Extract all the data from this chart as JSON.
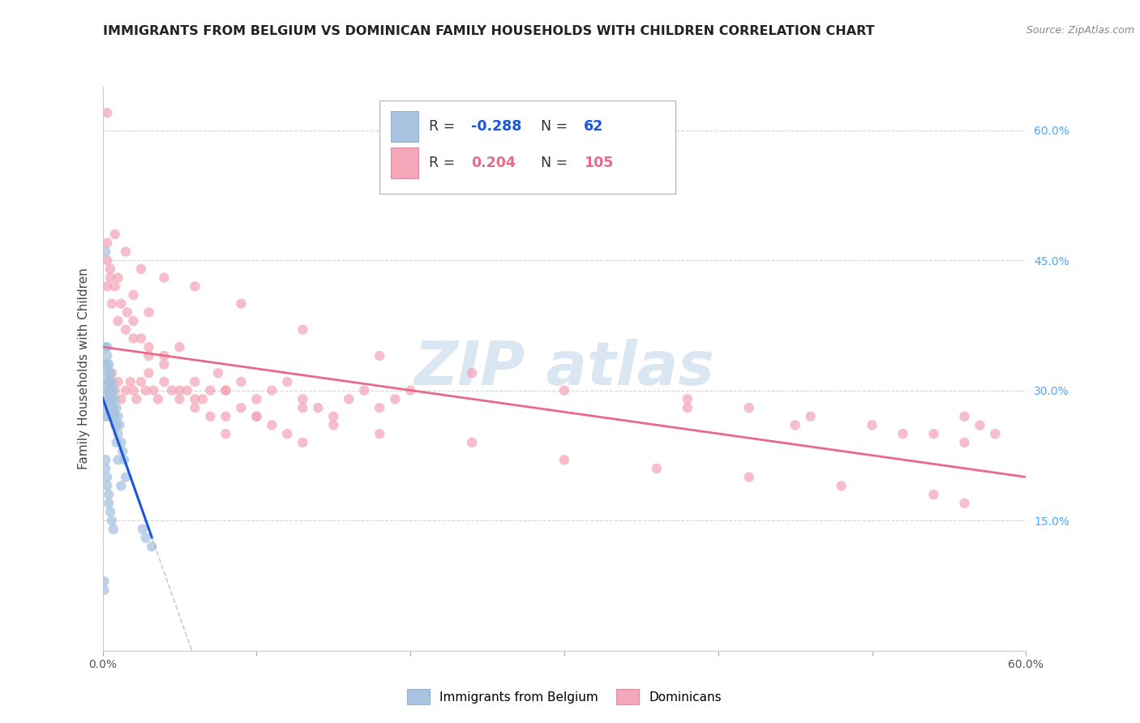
{
  "title": "IMMIGRANTS FROM BELGIUM VS DOMINICAN FAMILY HOUSEHOLDS WITH CHILDREN CORRELATION CHART",
  "source": "Source: ZipAtlas.com",
  "ylabel": "Family Households with Children",
  "xlim": [
    0.0,
    0.6
  ],
  "ylim": [
    0.0,
    0.65
  ],
  "yticks": [
    0.0,
    0.15,
    0.3,
    0.45,
    0.6
  ],
  "ytick_labels": [
    "",
    "15.0%",
    "30.0%",
    "45.0%",
    "60.0%"
  ],
  "xticks": [
    0.0,
    0.1,
    0.2,
    0.3,
    0.4,
    0.5,
    0.6
  ],
  "xtick_labels": [
    "0.0%",
    "",
    "",
    "",
    "",
    "",
    "60.0%"
  ],
  "watermark": "ZIP atlas",
  "legend_R1": "-0.288",
  "legend_N1": "62",
  "legend_R2": "0.204",
  "legend_N2": "105",
  "blue_scatter_color": "#a8c4e0",
  "pink_scatter_color": "#f4a7b9",
  "blue_line_color": "#1a56db",
  "pink_line_color": "#e8698a",
  "scatter_size": 80,
  "background_color": "#ffffff",
  "grid_color": "#cccccc",
  "title_color": "#222222",
  "axis_label_color": "#444444",
  "right_yaxis_color": "#4da6ff",
  "blue_x": [
    0.001,
    0.002,
    0.002,
    0.003,
    0.003,
    0.003,
    0.003,
    0.004,
    0.004,
    0.004,
    0.004,
    0.005,
    0.005,
    0.005,
    0.005,
    0.006,
    0.006,
    0.006,
    0.007,
    0.007,
    0.007,
    0.008,
    0.008,
    0.009,
    0.009,
    0.01,
    0.01,
    0.011,
    0.012,
    0.013,
    0.014,
    0.015,
    0.002,
    0.002,
    0.003,
    0.003,
    0.003,
    0.004,
    0.004,
    0.005,
    0.005,
    0.006,
    0.007,
    0.008,
    0.009,
    0.01,
    0.012,
    0.002,
    0.002,
    0.003,
    0.003,
    0.004,
    0.004,
    0.005,
    0.006,
    0.007,
    0.026,
    0.028,
    0.032,
    0.001,
    0.001,
    0.002
  ],
  "blue_y": [
    0.27,
    0.28,
    0.3,
    0.29,
    0.31,
    0.32,
    0.27,
    0.28,
    0.3,
    0.31,
    0.29,
    0.27,
    0.29,
    0.3,
    0.32,
    0.28,
    0.29,
    0.31,
    0.27,
    0.3,
    0.28,
    0.27,
    0.29,
    0.26,
    0.28,
    0.25,
    0.27,
    0.26,
    0.24,
    0.23,
    0.22,
    0.2,
    0.33,
    0.35,
    0.34,
    0.33,
    0.35,
    0.33,
    0.32,
    0.31,
    0.3,
    0.29,
    0.28,
    0.26,
    0.24,
    0.22,
    0.19,
    0.22,
    0.21,
    0.2,
    0.19,
    0.18,
    0.17,
    0.16,
    0.15,
    0.14,
    0.14,
    0.13,
    0.12,
    0.08,
    0.07,
    0.46
  ],
  "pink_x": [
    0.003,
    0.004,
    0.005,
    0.006,
    0.008,
    0.01,
    0.012,
    0.015,
    0.018,
    0.02,
    0.022,
    0.025,
    0.028,
    0.03,
    0.033,
    0.036,
    0.04,
    0.045,
    0.05,
    0.055,
    0.06,
    0.065,
    0.07,
    0.075,
    0.08,
    0.09,
    0.1,
    0.11,
    0.12,
    0.13,
    0.14,
    0.15,
    0.16,
    0.17,
    0.18,
    0.19,
    0.2,
    0.003,
    0.005,
    0.008,
    0.012,
    0.016,
    0.02,
    0.025,
    0.03,
    0.04,
    0.05,
    0.06,
    0.07,
    0.08,
    0.09,
    0.1,
    0.11,
    0.12,
    0.13,
    0.15,
    0.003,
    0.006,
    0.01,
    0.015,
    0.02,
    0.03,
    0.04,
    0.06,
    0.08,
    0.1,
    0.003,
    0.005,
    0.01,
    0.02,
    0.03,
    0.05,
    0.08,
    0.13,
    0.18,
    0.24,
    0.3,
    0.36,
    0.42,
    0.48,
    0.54,
    0.56,
    0.003,
    0.008,
    0.015,
    0.025,
    0.04,
    0.06,
    0.09,
    0.13,
    0.18,
    0.24,
    0.3,
    0.38,
    0.45,
    0.52,
    0.56,
    0.38,
    0.42,
    0.46,
    0.5,
    0.54,
    0.56,
    0.57,
    0.58
  ],
  "pink_y": [
    0.3,
    0.31,
    0.29,
    0.32,
    0.3,
    0.31,
    0.29,
    0.3,
    0.31,
    0.3,
    0.29,
    0.31,
    0.3,
    0.32,
    0.3,
    0.29,
    0.31,
    0.3,
    0.29,
    0.3,
    0.31,
    0.29,
    0.3,
    0.32,
    0.3,
    0.31,
    0.29,
    0.3,
    0.31,
    0.29,
    0.28,
    0.27,
    0.29,
    0.3,
    0.28,
    0.29,
    0.3,
    0.47,
    0.43,
    0.42,
    0.4,
    0.39,
    0.38,
    0.36,
    0.35,
    0.34,
    0.3,
    0.28,
    0.27,
    0.25,
    0.28,
    0.27,
    0.26,
    0.25,
    0.24,
    0.26,
    0.42,
    0.4,
    0.38,
    0.37,
    0.36,
    0.34,
    0.33,
    0.29,
    0.27,
    0.27,
    0.45,
    0.44,
    0.43,
    0.41,
    0.39,
    0.35,
    0.3,
    0.28,
    0.25,
    0.24,
    0.22,
    0.21,
    0.2,
    0.19,
    0.18,
    0.17,
    0.62,
    0.48,
    0.46,
    0.44,
    0.43,
    0.42,
    0.4,
    0.37,
    0.34,
    0.32,
    0.3,
    0.28,
    0.26,
    0.25,
    0.24,
    0.29,
    0.28,
    0.27,
    0.26,
    0.25,
    0.27,
    0.26,
    0.25
  ]
}
